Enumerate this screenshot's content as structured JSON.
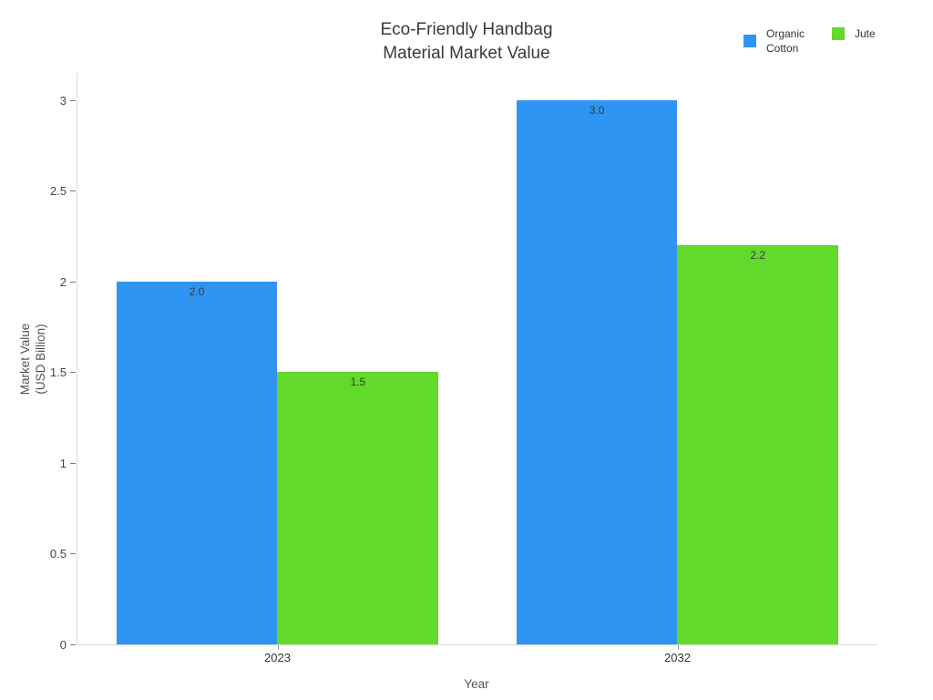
{
  "title": {
    "line1": "Eco-Friendly Handbag",
    "line2": "Material Market Value"
  },
  "legend": {
    "items": [
      {
        "label": "Organic Cotton",
        "color": "#3095F2"
      },
      {
        "label": "Jute",
        "color": "#62D92B"
      }
    ]
  },
  "axes": {
    "xlabel": "Year",
    "ylabel_line1": "Market Value",
    "ylabel_line2": "(USD Billion)"
  },
  "chart_data": {
    "type": "bar",
    "title": "Eco-Friendly Handbag Material Market Value",
    "categories": [
      "2023",
      "2032"
    ],
    "series": [
      {
        "name": "Organic Cotton",
        "color": "#3095F2",
        "values": [
          2.0,
          3.0
        ],
        "labels": [
          "2.0",
          "3.0"
        ]
      },
      {
        "name": "Jute",
        "color": "#62D92B",
        "values": [
          1.5,
          2.2
        ],
        "labels": [
          "1.5",
          "2.2"
        ]
      }
    ],
    "xlabel": "Year",
    "ylabel": "Market Value (USD Billion)",
    "ylim": [
      0,
      3.15
    ],
    "yticks": [
      0,
      0.5,
      1,
      1.5,
      2,
      2.5,
      3
    ],
    "ytick_labels": [
      "0",
      "0.5",
      "1",
      "1.5",
      "2",
      "2.5",
      "3"
    ],
    "grid": false,
    "legend_position": "top-right",
    "value_labels_inside_bar_top": true
  }
}
